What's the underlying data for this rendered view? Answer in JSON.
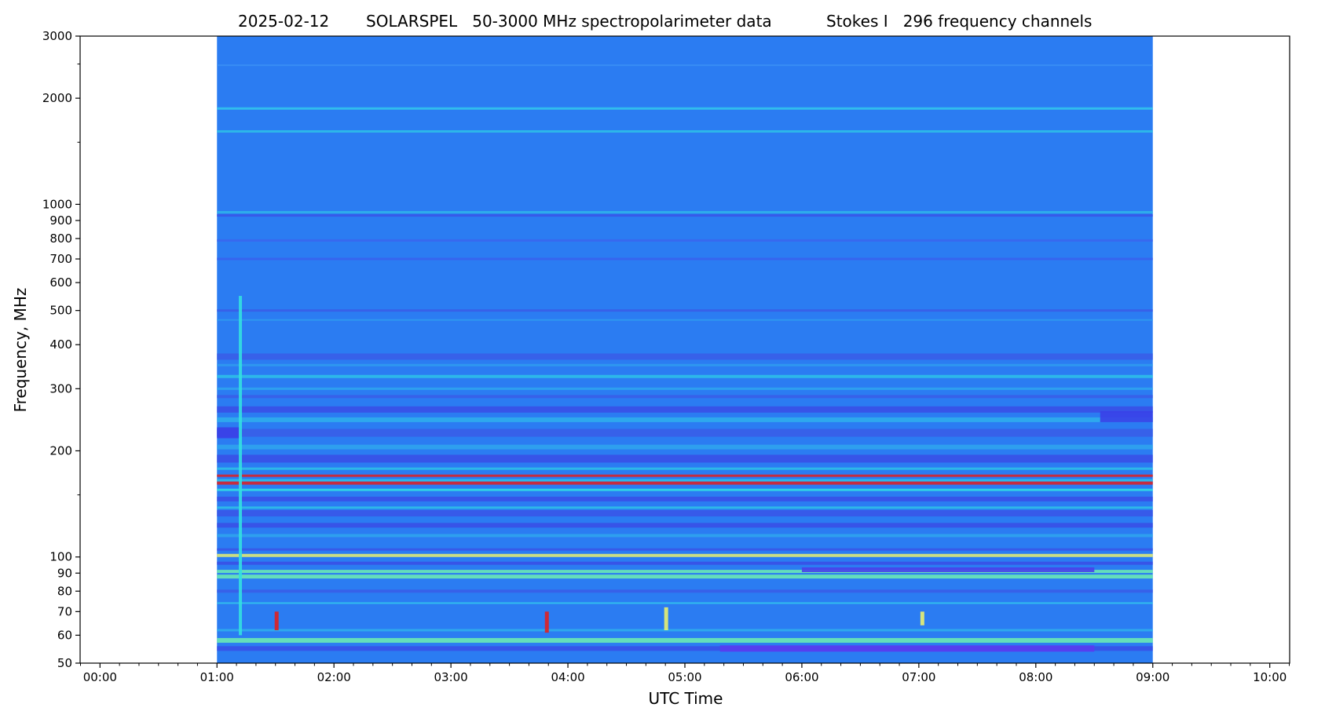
{
  "chart_data": {
    "type": "heatmap",
    "title_parts": [
      "2025-02-12",
      "SOLARSPEL   50-3000 MHz spectropolarimeter data",
      "Stokes I   296 frequency channels"
    ],
    "xlabel": "UTC Time",
    "ylabel": "Frequency, MHz",
    "x_unit": "hours UTC",
    "xlim": [
      -0.17,
      10.17
    ],
    "ylim": [
      50,
      3000
    ],
    "y_scale": "log",
    "x_ticks": [
      {
        "value": 0,
        "label": "00:00"
      },
      {
        "value": 1,
        "label": "01:00"
      },
      {
        "value": 2,
        "label": "02:00"
      },
      {
        "value": 3,
        "label": "03:00"
      },
      {
        "value": 4,
        "label": "04:00"
      },
      {
        "value": 5,
        "label": "05:00"
      },
      {
        "value": 6,
        "label": "06:00"
      },
      {
        "value": 7,
        "label": "07:00"
      },
      {
        "value": 8,
        "label": "08:00"
      },
      {
        "value": 9,
        "label": "09:00"
      },
      {
        "value": 10,
        "label": "10:00"
      }
    ],
    "y_ticks_labeled": [
      {
        "value": 50,
        "label": "50"
      },
      {
        "value": 60,
        "label": "60"
      },
      {
        "value": 70,
        "label": "70"
      },
      {
        "value": 80,
        "label": "80"
      },
      {
        "value": 90,
        "label": "90"
      },
      {
        "value": 100,
        "label": "100"
      },
      {
        "value": 200,
        "label": "200"
      },
      {
        "value": 300,
        "label": "300"
      },
      {
        "value": 400,
        "label": "400"
      },
      {
        "value": 500,
        "label": "500"
      },
      {
        "value": 600,
        "label": "600"
      },
      {
        "value": 700,
        "label": "700"
      },
      {
        "value": 800,
        "label": "800"
      },
      {
        "value": 900,
        "label": "900"
      },
      {
        "value": 1000,
        "label": "1000"
      },
      {
        "value": 2000,
        "label": "2000"
      },
      {
        "value": 3000,
        "label": "3000"
      }
    ],
    "y_ticks_minor": [
      150,
      1500,
      2500
    ],
    "data_coverage": {
      "start": 1.0,
      "end": 9.0
    },
    "colors": {
      "background_band": "#2b7cf2",
      "bright_line": "#2ec2e8",
      "cyan": "#33e0e0",
      "greenish": "#6ff0b0",
      "yellow": "#e8f070",
      "dark": "#3a55e8",
      "violet": "#5a3cf0",
      "red": "#e02020"
    },
    "spectral_lines": [
      {
        "freq": 2480,
        "color": "#3b8ff5",
        "width": 2
      },
      {
        "freq": 1870,
        "color": "#33c8ec",
        "width": 3
      },
      {
        "freq": 1610,
        "color": "#2ec2e8",
        "width": 3
      },
      {
        "freq": 950,
        "color": "#2fb6ea",
        "width": 3
      },
      {
        "freq": 930,
        "color": "#3a55e8",
        "width": 3
      },
      {
        "freq": 790,
        "color": "#3a66ee",
        "width": 3
      },
      {
        "freq": 700,
        "color": "#3a60ee",
        "width": 3
      },
      {
        "freq": 500,
        "color": "#3a5de8",
        "width": 3
      },
      {
        "freq": 470,
        "color": "#2f9cf0",
        "width": 2
      },
      {
        "freq": 370,
        "color": "#3a5de8",
        "width": 8
      },
      {
        "freq": 350,
        "color": "#2f9cf0",
        "width": 3
      },
      {
        "freq": 325,
        "color": "#2ec2e8",
        "width": 4
      },
      {
        "freq": 300,
        "color": "#2fa6ee",
        "width": 3
      },
      {
        "freq": 285,
        "color": "#3a5de8",
        "width": 4
      },
      {
        "freq": 262,
        "color": "#3a4de6",
        "width": 8
      },
      {
        "freq": 245,
        "color": "#2fb0ec",
        "width": 6
      },
      {
        "freq": 225,
        "color": "#3a5de8",
        "width": 10
      },
      {
        "freq": 205,
        "color": "#2fa6ee",
        "width": 6
      },
      {
        "freq": 190,
        "color": "#3a4de6",
        "width": 10
      },
      {
        "freq": 178,
        "color": "#2ec2e8",
        "width": 3
      },
      {
        "freq": 170,
        "color": "#e02020",
        "width": 3
      },
      {
        "freq": 165,
        "color": "#2ec2e8",
        "width": 3
      },
      {
        "freq": 162,
        "color": "#e02020",
        "width": 4
      },
      {
        "freq": 155,
        "color": "#33e0e0",
        "width": 3
      },
      {
        "freq": 146,
        "color": "#3a4de6",
        "width": 6
      },
      {
        "freq": 138,
        "color": "#2ec2e8",
        "width": 3
      },
      {
        "freq": 133,
        "color": "#3a55e8",
        "width": 8
      },
      {
        "freq": 123,
        "color": "#3a4de6",
        "width": 6
      },
      {
        "freq": 115,
        "color": "#2fa6ee",
        "width": 4
      },
      {
        "freq": 105,
        "color": "#3a55e8",
        "width": 3
      },
      {
        "freq": 101,
        "color": "#e8f070",
        "width": 4
      },
      {
        "freq": 96,
        "color": "#3a4de6",
        "width": 4
      },
      {
        "freq": 91,
        "color": "#6ff0b0",
        "width": 4
      },
      {
        "freq": 88,
        "color": "#6ff0b0",
        "width": 5
      },
      {
        "freq": 80,
        "color": "#3a5de8",
        "width": 4
      },
      {
        "freq": 74,
        "color": "#33c8ec",
        "width": 2
      },
      {
        "freq": 62,
        "color": "#2fb0ec",
        "width": 3
      },
      {
        "freq": 58,
        "color": "#6ff0b0",
        "width": 6
      },
      {
        "freq": 55,
        "color": "#3a4de6",
        "width": 6
      }
    ],
    "bursts": [
      {
        "time": 1.51,
        "freq_low": 62,
        "freq_high": 70,
        "color": "#e02020"
      },
      {
        "time": 3.82,
        "freq_low": 61,
        "freq_high": 70,
        "color": "#e02020"
      },
      {
        "time": 4.84,
        "freq_low": 62,
        "freq_high": 72,
        "color": "#e8f070"
      },
      {
        "time": 7.03,
        "freq_low": 64,
        "freq_high": 70,
        "color": "#e8f070"
      },
      {
        "time": 1.2,
        "freq_low": 60,
        "freq_high": 550,
        "color": "#33e0e0"
      }
    ],
    "dark_segments": [
      {
        "t0": 5.3,
        "t1": 8.5,
        "freq": 55,
        "color": "#5a3cf0",
        "width": 8
      },
      {
        "t0": 6.0,
        "t1": 8.5,
        "freq": 92,
        "color": "#4a40ea",
        "width": 6
      },
      {
        "t0": 8.55,
        "t1": 9.0,
        "freq": 250,
        "color": "#3a40e8",
        "width": 14
      },
      {
        "t0": 1.0,
        "t1": 1.2,
        "freq": 225,
        "color": "#3a40e8",
        "width": 14
      }
    ]
  }
}
